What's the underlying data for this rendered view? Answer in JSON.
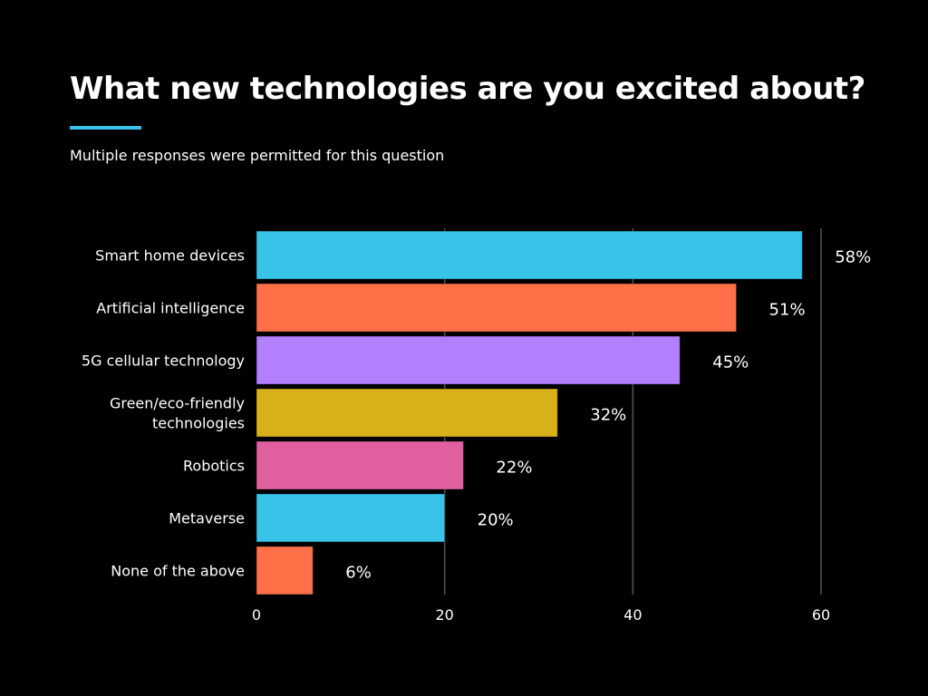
{
  "title": "What new technologies are you excited about?",
  "subtitle": "Multiple responses were permitted for this question",
  "accent_color": "#38C3E8",
  "chart_data": {
    "type": "bar",
    "orientation": "horizontal",
    "categories": [
      "Smart home devices",
      "Artificial intelligence",
      "5G cellular technology",
      "Green/eco-friendly technologies",
      "Robotics",
      "Metaverse",
      "None of the above"
    ],
    "category_lines": [
      [
        "Smart home devices"
      ],
      [
        "Artificial intelligence"
      ],
      [
        "5G cellular technology"
      ],
      [
        "Green/eco-friendly",
        "technologies"
      ],
      [
        "Robotics"
      ],
      [
        "Metaverse"
      ],
      [
        "None of the above"
      ]
    ],
    "values": [
      58,
      51,
      45,
      32,
      22,
      20,
      6
    ],
    "data_labels": [
      "58%",
      "51%",
      "45%",
      "32%",
      "22%",
      "20%",
      "6%"
    ],
    "colors": [
      "#38C3E8",
      "#FF7048",
      "#B27FFF",
      "#D8B01A",
      "#E260A0",
      "#38C3E8",
      "#FF7048"
    ],
    "xlim": [
      0,
      60
    ],
    "xticks": [
      "0",
      "20",
      "40",
      "60"
    ],
    "grid": "vertical",
    "legend": "none"
  }
}
